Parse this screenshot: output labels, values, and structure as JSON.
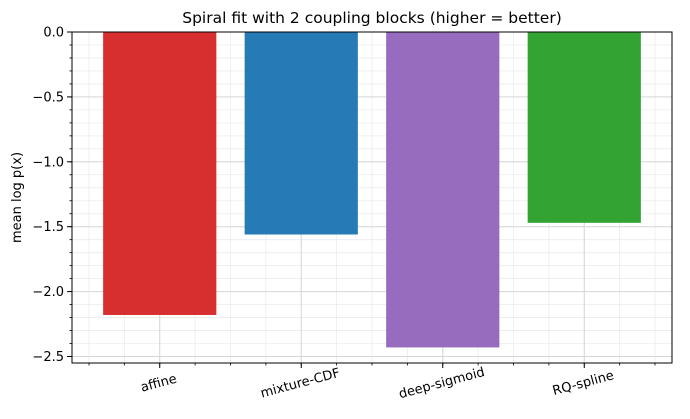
{
  "chart_data": {
    "type": "bar",
    "title": "Spiral fit with 2 coupling blocks (higher = better)",
    "xlabel": "",
    "ylabel": "mean log p(x)",
    "categories": [
      "affine",
      "mixture-CDF",
      "deep-sigmoid",
      "RQ-spline"
    ],
    "values": [
      -2.18,
      -1.56,
      -2.43,
      -1.47
    ],
    "colors": [
      "#d62728",
      "#1f77b4",
      "#9467bd",
      "#2ca02c"
    ],
    "ylim": [
      -2.55,
      0.0
    ],
    "yticks": [
      0.0,
      -0.5,
      -1.0,
      -1.5,
      -2.0,
      -2.5
    ],
    "ytick_labels": [
      "0.0",
      "−0.5",
      "−1.0",
      "−1.5",
      "−2.0",
      "−2.5"
    ],
    "grid": true,
    "xtick_rotation_deg": -15
  }
}
